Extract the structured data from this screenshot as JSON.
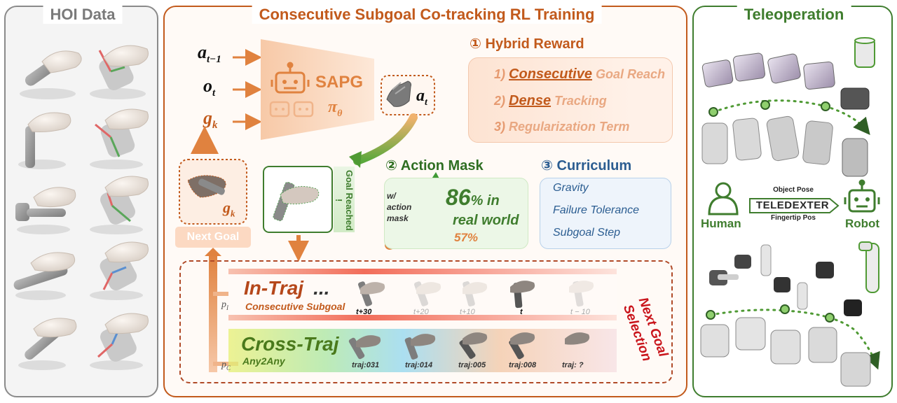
{
  "panels": {
    "hoi_title": "HOI Data",
    "rl_title": "Consecutive Subgoal Co-tracking RL Training",
    "tele_title": "Teleoperation"
  },
  "policy": {
    "inputs": {
      "prev_action": "a",
      "prev_action_sub": "t−1",
      "obs": "o",
      "obs_sub": "t",
      "goal": "g",
      "goal_sub": "k"
    },
    "name": "SAPG",
    "symbol": "π",
    "symbol_sub": "θ",
    "output": "a",
    "output_sub": "t"
  },
  "goal": {
    "label": "g",
    "label_sub": "k",
    "next_goal": "Next Goal",
    "reached": "Goal Reached !"
  },
  "hybrid_reward": {
    "number": "①",
    "title": "Hybrid Reward",
    "items": [
      {
        "num": "1)",
        "strong": "Consecutive",
        "rest": " Goal Reach"
      },
      {
        "num": "2)",
        "strong": "Dense",
        "rest": " Tracking"
      },
      {
        "num": "3)",
        "strong": "",
        "rest": "Regularization Term"
      }
    ]
  },
  "action_mask": {
    "number": "②",
    "title": "Action Mask",
    "with_mask": "w/ action mask",
    "main_value": "86",
    "main_suffix": "% in",
    "real_world": "real world",
    "baseline": "57%"
  },
  "curriculum": {
    "number": "③",
    "title": "Curriculum",
    "items": [
      "Gravity",
      "Failure Tolerance",
      "Subgoal Step"
    ]
  },
  "next_goal_selection": {
    "line1": "Next Goal",
    "line2": "Selection"
  },
  "in_traj": {
    "title": "In-Traj",
    "ellipsis": "...",
    "subtitle": "Consecutive Subgoal",
    "prob": "p",
    "prob_sub": "I",
    "frames": [
      "t+30",
      "t+20",
      "t+10",
      "t",
      "t − 10"
    ]
  },
  "cross_traj": {
    "title": "Cross-Traj",
    "subtitle": "Any2Any",
    "prob": "p",
    "prob_sub": "C",
    "frames": [
      "traj:031",
      "traj:014",
      "traj:005",
      "traj:008",
      "traj: ?"
    ]
  },
  "teleop": {
    "human": "Human",
    "robot": "Robot",
    "system": "TELEDEXTER",
    "top_signal": "Object Pose",
    "bottom_signal": "Fingertip Pos"
  },
  "colors": {
    "orange": "#c25a1c",
    "green": "#3f7d2e",
    "blue": "#2b5d91",
    "red": "#c9141b",
    "grey": "#7a7a7a"
  },
  "icons": [
    "robot-icon",
    "human-icon",
    "hand-icon",
    "cylinder-icon",
    "hammer-icon"
  ]
}
